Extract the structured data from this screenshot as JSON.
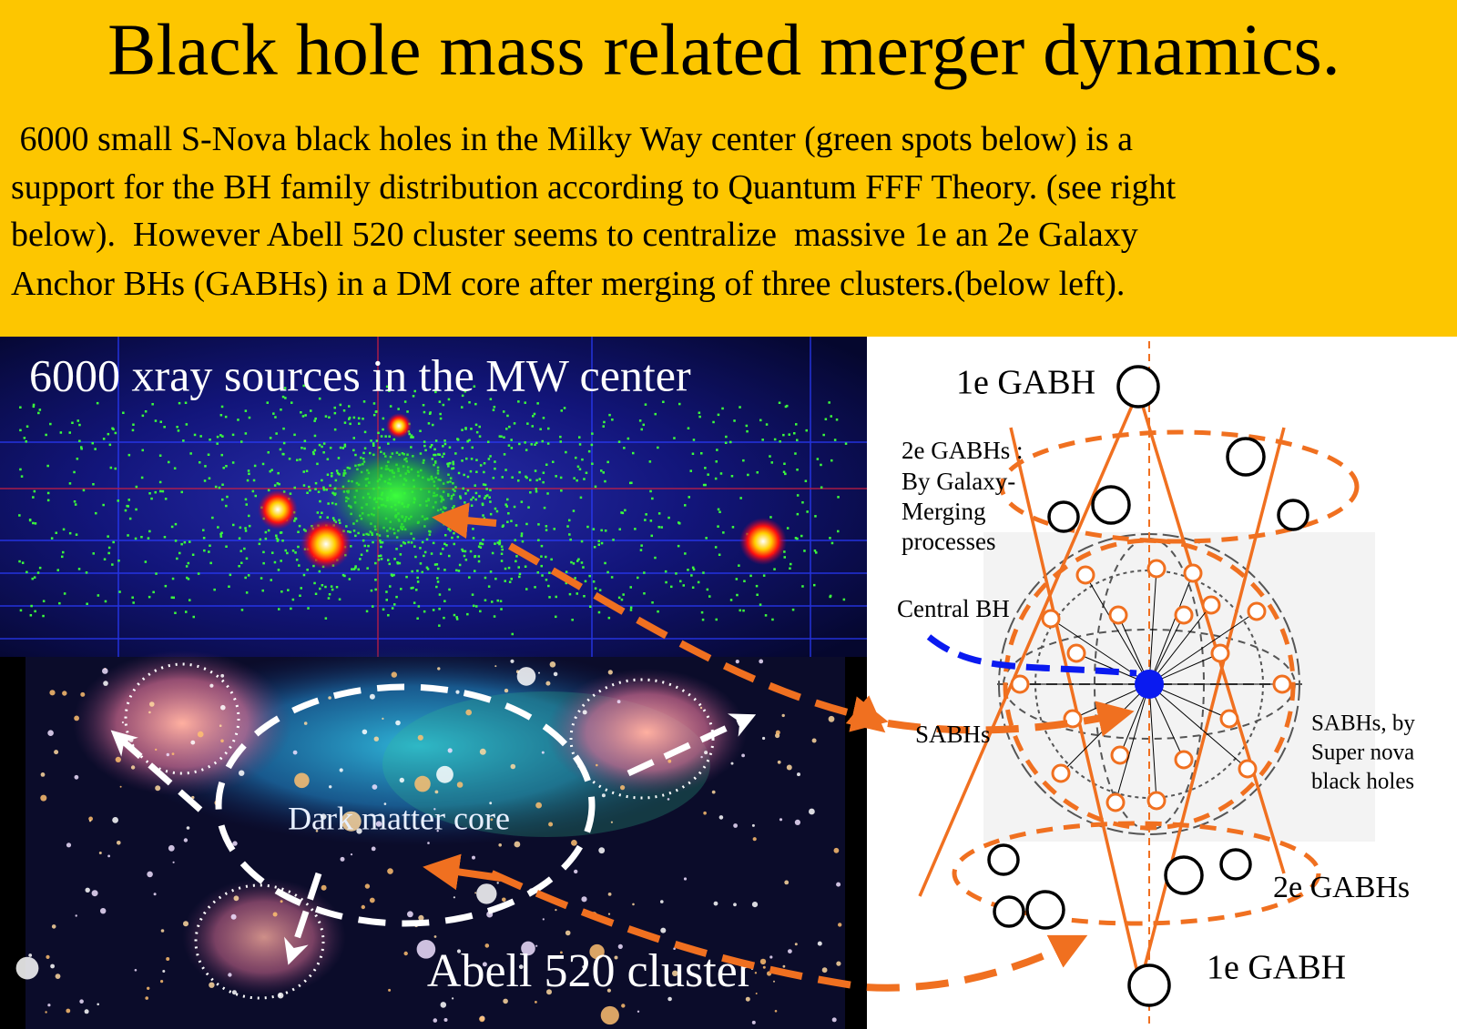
{
  "header": {
    "title": "Black hole mass related merger dynamics.",
    "lines": [
      " 6000 small S-Nova black holes in the Milky Way center (green spots below) is a",
      "support for the BH family distribution according to Quantum FFF Theory. (see right",
      "below).  However Abell 520 cluster seems to centralize  massive 1e an 2e Galaxy",
      "Anchor BHs (GABHs) in a DM core after merging of three clusters.(below left)."
    ]
  },
  "left_panel": {
    "top_label": "6000 xray sources in the MW center",
    "core_label": "Dark matter core",
    "bottom_label": "Abell 520 cluster"
  },
  "diagram": {
    "top_label": "1e GABH",
    "upper_note": [
      "2e GABHs :",
      "By Galaxy-",
      "Merging",
      "processes"
    ],
    "central_label": "Central BH",
    "sabh_label": "SABHs",
    "right_note": [
      "SABHs, by",
      "Super nova",
      "black holes"
    ],
    "lower_label": "2e GABHs",
    "bottom_label": "1e GABH"
  }
}
